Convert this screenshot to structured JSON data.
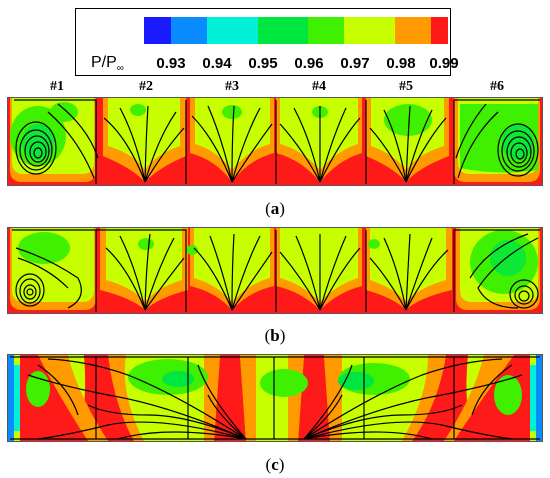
{
  "legend": {
    "variable_main": "P/P",
    "variable_sub": "∞",
    "levels": [
      "0.93",
      "0.94",
      "0.95",
      "0.96",
      "0.97",
      "0.98",
      "0.99"
    ],
    "colors": [
      "#1a1aff",
      "#0a8cff",
      "#00f0d8",
      "#00e640",
      "#3ff000",
      "#c8ff00",
      "#ff9a00",
      "#ff1a1a"
    ]
  },
  "sections": [
    "#1",
    "#2",
    "#3",
    "#4",
    "#5",
    "#6"
  ],
  "panels": [
    {
      "id": "a",
      "caption_open": "(",
      "caption_letter": "a",
      "caption_close": ")"
    },
    {
      "id": "b",
      "caption_open": "(",
      "caption_letter": "b",
      "caption_close": ")"
    },
    {
      "id": "c",
      "caption_open": "(",
      "caption_letter": "c",
      "caption_close": ")"
    }
  ]
}
